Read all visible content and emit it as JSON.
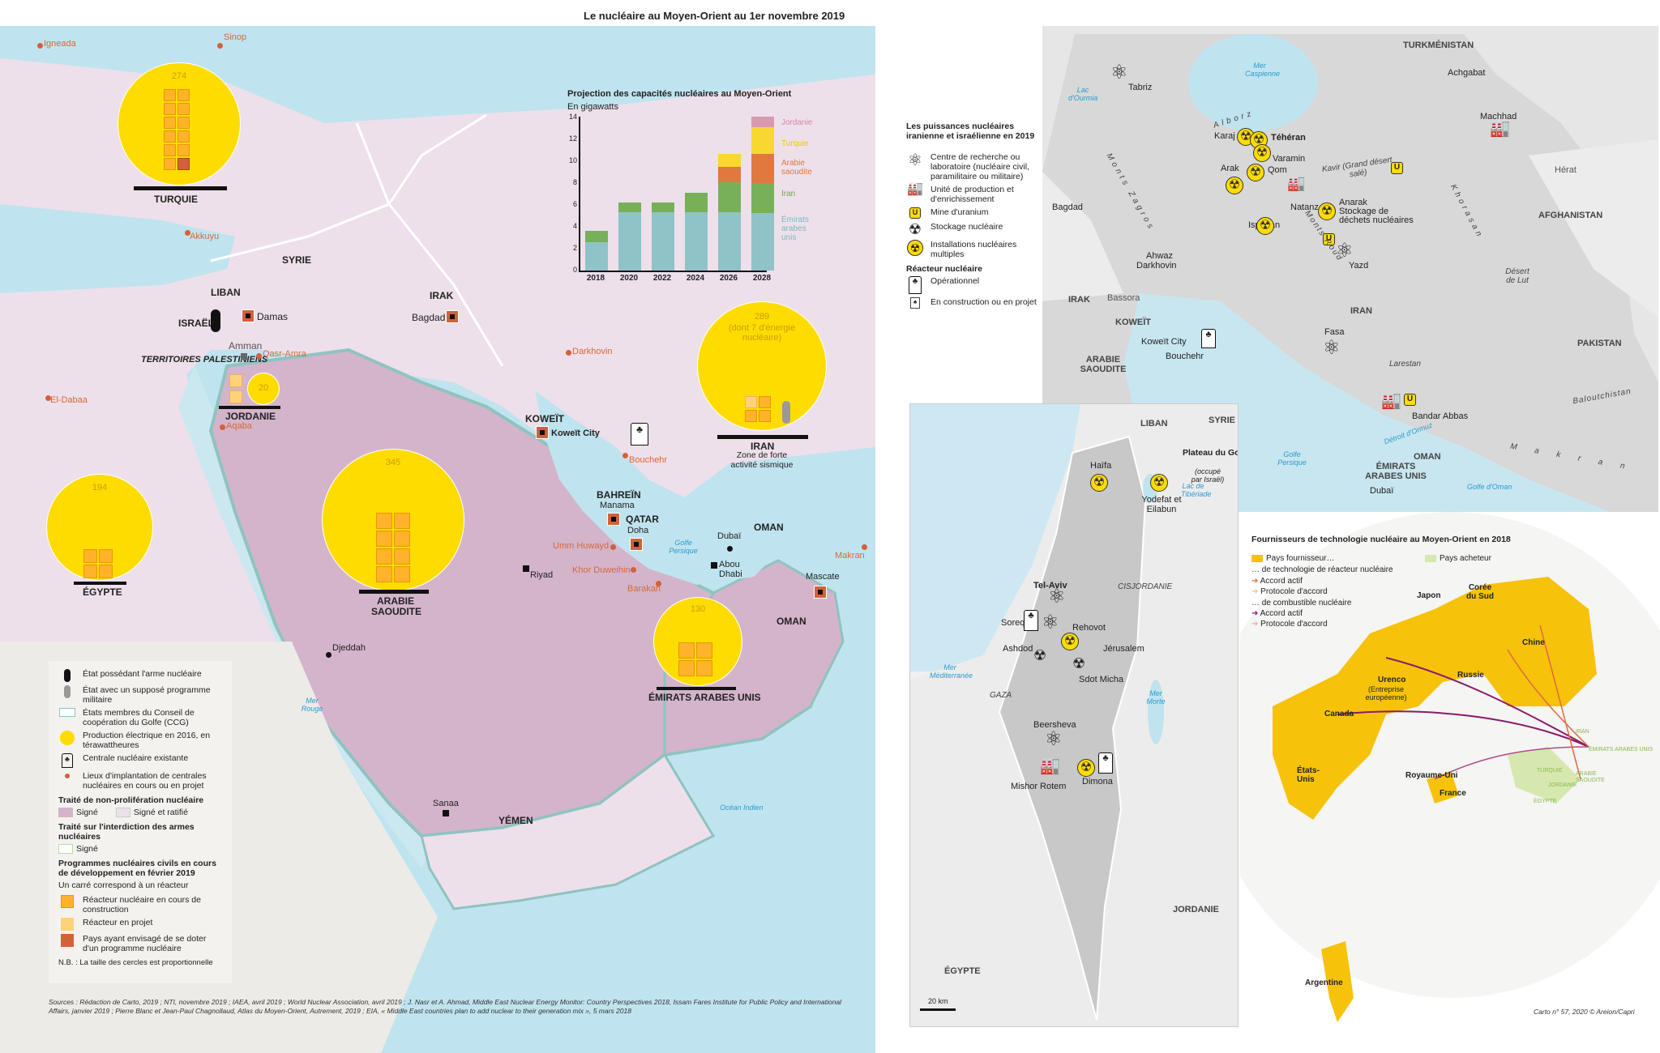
{
  "title": "Le nucléaire au Moyen-Orient au 1er novembre 2019",
  "main_map": {
    "countries": [
      {
        "name": "TURQUIE",
        "production_twh": "274",
        "reactors_construction": 11,
        "reactors_project": 0,
        "reactors_considered": 1
      },
      {
        "name": "SYRIE"
      },
      {
        "name": "LIBAN"
      },
      {
        "name": "ISRAËL",
        "nuclear_weapon": true
      },
      {
        "name": "TERRITOIRES PALESTINIENS"
      },
      {
        "name": "JORDANIE",
        "production_twh": "20",
        "reactors_project": 2
      },
      {
        "name": "IRAK"
      },
      {
        "name": "KOWEÏT"
      },
      {
        "name": "IRAN",
        "production_twh": "289",
        "production_note": "(dont 7 d'énergie nucléaire)",
        "subtitle": "Zone de forte activité sismique",
        "reactors_construction": 3,
        "reactors_project": 1
      },
      {
        "name": "BAHREÏN"
      },
      {
        "name": "QATAR"
      },
      {
        "name": "ARABIE SAOUDITE",
        "production_twh": "345",
        "reactors_project": 8
      },
      {
        "name": "ÉMIRATS ARABES UNIS",
        "production_twh": "130",
        "reactors_construction": 4
      },
      {
        "name": "OMAN"
      },
      {
        "name": "YÉMEN"
      },
      {
        "name": "ÉGYPTE",
        "production_twh": "194",
        "reactors_project": 4
      }
    ],
    "cities": [
      "Damas",
      "Bagdad",
      "Amman",
      "Koweït City",
      "Manama",
      "Doha",
      "Riyad",
      "Dubaï",
      "Abou Dhabi",
      "Mascate",
      "Djeddah",
      "Sanaa"
    ],
    "planned_sites": [
      "Igneada",
      "Sinop",
      "Akkuyu",
      "El-Dabaa",
      "Qasr-Amra",
      "Aqaba",
      "Darkhovin",
      "Bouchehr",
      "Umm Huwayd",
      "Khor Duweihin",
      "Barakah",
      "Makran"
    ],
    "seas": [
      "Golfe Persique",
      "Mer Rouge",
      "Océan Indien"
    ]
  },
  "chart_data": {
    "type": "bar",
    "stacked": true,
    "title": "Projection des capacités nucléaires au Moyen-Orient",
    "subtitle": "En gigawatts",
    "xlabel": "",
    "ylabel": "En gigawatts",
    "ylim": [
      0,
      14
    ],
    "yticks": [
      0,
      2,
      4,
      6,
      8,
      10,
      12,
      14
    ],
    "categories": [
      "2018",
      "2020",
      "2022",
      "2024",
      "2026",
      "2028"
    ],
    "series": [
      {
        "name": "Émirats arabes unis",
        "color": "#8fc3c8",
        "values": [
          2.6,
          5.3,
          5.3,
          5.3,
          5.3,
          5.3
        ]
      },
      {
        "name": "Iran",
        "color": "#78b05a",
        "values": [
          1.0,
          0.9,
          0.9,
          1.8,
          2.7,
          2.7
        ]
      },
      {
        "name": "Arabie saoudite",
        "color": "#e07840",
        "values": [
          0,
          0,
          0,
          0,
          1.4,
          2.7
        ]
      },
      {
        "name": "Turquie",
        "color": "#f8d830",
        "values": [
          0,
          0,
          0,
          0,
          1.2,
          2.4
        ]
      },
      {
        "name": "Jordanie",
        "color": "#d89ab0",
        "values": [
          0,
          0,
          0,
          0,
          0,
          1.0
        ]
      }
    ],
    "legend_position": "right",
    "grid": true
  },
  "legend": {
    "items": [
      {
        "icon": "nuclear-weapon-icon",
        "label": "État possédant l'arme nucléaire"
      },
      {
        "icon": "suspected-weapon-icon",
        "label": "État avec un supposé programme militaire"
      },
      {
        "icon": "gcc-outline-icon",
        "label": "États membres du Conseil de coopération du Golfe (CCG)"
      },
      {
        "icon": "yellow-circle-icon",
        "label": "Production électrique en 2016, en térawattheures"
      },
      {
        "icon": "power-plant-icon",
        "label": "Centrale nucléaire existante"
      },
      {
        "icon": "orange-dot-icon",
        "label": "Lieux d'implantation de centrales nucléaires en cours ou en projet"
      }
    ],
    "npt_heading": "Traité de non-prolifération nucléaire",
    "npt_signed": "Signé",
    "npt_ratified": "Signé et ratifié",
    "tpnw_heading": "Traité sur l'interdiction des armes nucléaires",
    "tpnw_signed": "Signé",
    "programs_heading": "Programmes nucléaires civils en cours de développement en février 2019",
    "programs_note": "Un carré correspond à un réacteur",
    "reactor_construction": "Réacteur nucléaire en cours de construction",
    "reactor_project": "Réacteur en projet",
    "reactor_considered": "Pays ayant envisagé de se doter d'un programme nucléaire",
    "nb": "N.B. : La taille des cercles est proportionnelle"
  },
  "sources": "Sources : Rédaction de Carto, 2019 ; NTI, novembre 2019 ; IAEA, avril 2019 ; World Nuclear Association, avril 2019 ; J. Nasr et A. Ahmad, Middle East Nuclear Energy Monitor: Country Perspectives 2018, Issam Fares Institute for Public Policy and International Affairs, janvier 2019 ; Pierre Blanc et Jean-Paul Chagnollaud, Atlas du Moyen-Orient, Autrement, 2019 ; EIA, « Middle East countries plan to add nuclear to their generation mix », 5 mars 2018",
  "iran_legend": {
    "title": "Les puissances nucléaires iranienne et israélienne en 2019",
    "items": [
      {
        "icon": "research-atom-icon",
        "label": "Centre de recherche ou laboratoire (nucléaire civil, paramilitaire ou militaire)"
      },
      {
        "icon": "factory-icon",
        "label": "Unité de production et d'enrichissement"
      },
      {
        "icon": "uranium-mine-icon",
        "label": "Mine d'uranium"
      },
      {
        "icon": "storage-icon",
        "label": "Stockage nucléaire"
      },
      {
        "icon": "multi-installation-icon",
        "label": "Installations nucléaires multiples"
      }
    ],
    "reactor_heading": "Réacteur nucléaire",
    "reactor_operational": "Opérationnel",
    "reactor_planned": "En construction ou en projet"
  },
  "iran_map": {
    "countries": [
      "TURKMÉNISTAN",
      "AFGHANISTAN",
      "PAKISTAN",
      "IRAN",
      "IRAK",
      "KOWEÏT",
      "ARABIE SAOUDITE",
      "ÉMIRATS ARABES UNIS",
      "OMAN"
    ],
    "sites": [
      "Tabriz",
      "Karaj",
      "Téhéran",
      "Varamin",
      "Arak",
      "Qom",
      "Natanz",
      "Ispahan",
      "Anarak",
      "Stockage de déchets nucléaires",
      "Yazd",
      "Machhad",
      "Ahwaz",
      "Darkhovin",
      "Bouchehr",
      "Fasa",
      "Bandar Abbas"
    ],
    "cities": [
      "Achgabat",
      "Hérat",
      "Bagdad",
      "Bassora",
      "Koweït City",
      "Dubaï"
    ],
    "regions": [
      "Alborz",
      "Kavir (Grand désert salé)",
      "Khorasan",
      "Monts Zagros",
      "Monts Roud",
      "Désert de Lut",
      "Larestan",
      "Baloutchistan",
      "Makran"
    ],
    "seas": [
      "Mer Caspienne",
      "Lac d'Ourmia",
      "Golfe Persique",
      "Détroit d'Ormuz",
      "Golfe d'Oman"
    ]
  },
  "israel_map": {
    "countries": [
      "LIBAN",
      "SYRIE",
      "CISJORDANIE",
      "GAZA",
      "JORDANIE",
      "ÉGYPTE"
    ],
    "golan": "Plateau du Golan",
    "golan_note": "(occupé par Israël)",
    "sites": [
      "Haïfa",
      "Yodefat et Eilabun",
      "Tel-Aviv",
      "Soreq",
      "Rehovot",
      "Ashdod",
      "Sdot Micha",
      "Jérusalem",
      "Beersheva",
      "Mishor Rotem",
      "Dimona"
    ],
    "seas": [
      "Mer Méditerranée",
      "Lac de Tibériade",
      "Mer Morte"
    ],
    "scale": "20 km"
  },
  "world_map": {
    "title": "Fournisseurs de technologie nucléaire au Moyen-Orient en 2018",
    "legend": {
      "supplier": "Pays fournisseur…",
      "buyer": "Pays acheteur",
      "reactor_tech": "… de technologie de réacteur nucléaire",
      "fuel": "… de combustible nucléaire",
      "active": "Accord actif",
      "mou": "Protocole d'accord"
    },
    "suppliers": [
      "Japon",
      "Corée du Sud",
      "Chine",
      "Russie",
      "Urenco",
      "(Entreprise européenne)",
      "Canada",
      "États-Unis",
      "Royaume-Uni",
      "France",
      "Argentine"
    ],
    "buyers": [
      "IRAN",
      "ÉMIRATS ARABES UNIS",
      "TURQUIE",
      "ARABIE SAOUDITE",
      "JORDANIE",
      "ÉGYPTE"
    ],
    "credit": "Carto n° 57, 2020 © Areion/Capri"
  }
}
